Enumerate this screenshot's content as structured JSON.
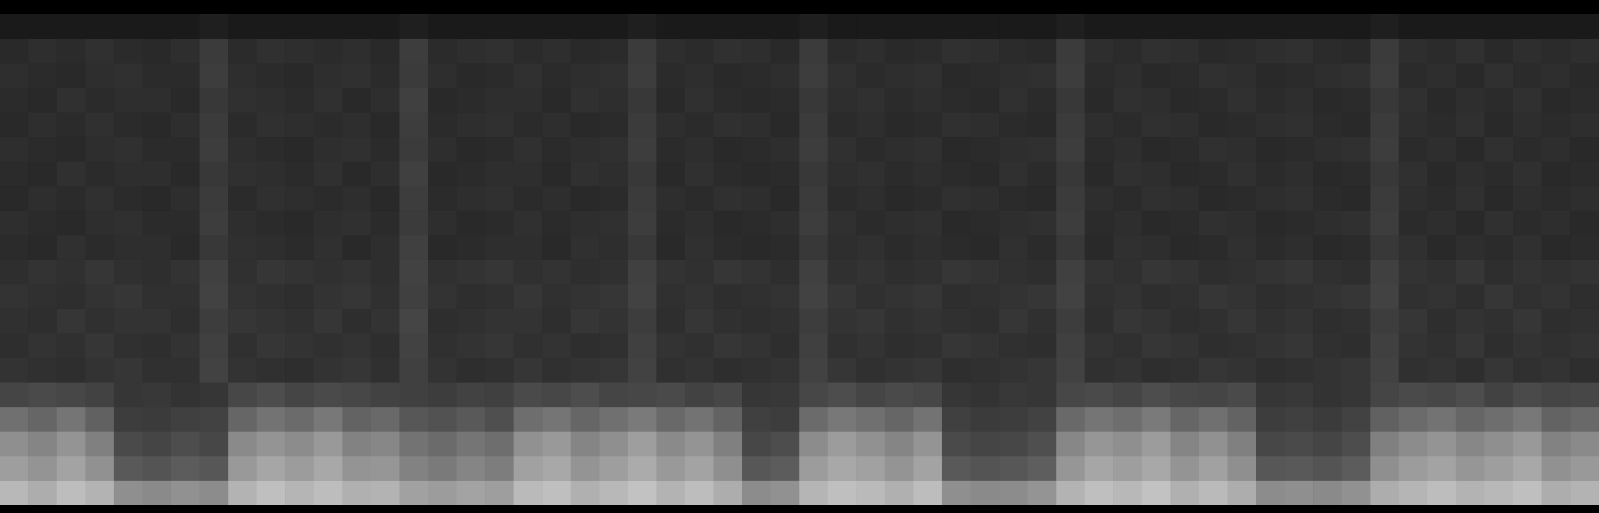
{
  "chart_data": {
    "type": "heatmap",
    "color": "#ffffff",
    "tick_labels": false,
    "grid": false,
    "value_range": [
      0,
      100
    ],
    "cells": [
      [
        10,
        10,
        10,
        10,
        10,
        10,
        10,
        12,
        10,
        10,
        10,
        10,
        10,
        10,
        12,
        10,
        10,
        10,
        10,
        10,
        10,
        10,
        12,
        10,
        10,
        10,
        10,
        10,
        12,
        10,
        10,
        10,
        10,
        10,
        10,
        10,
        10,
        12,
        10,
        10,
        10,
        10,
        10,
        10,
        10,
        10,
        10,
        10,
        12,
        10,
        10,
        10,
        10,
        10,
        10,
        10
      ],
      [
        16,
        18,
        17,
        19,
        17,
        16,
        18,
        23,
        17,
        19,
        18,
        17,
        18,
        16,
        24,
        17,
        18,
        19,
        17,
        18,
        16,
        17,
        23,
        18,
        17,
        19,
        18,
        16,
        23,
        17,
        18,
        16,
        17,
        19,
        18,
        17,
        16,
        23,
        18,
        17,
        19,
        18,
        16,
        17,
        18,
        19,
        17,
        16,
        23,
        18,
        17,
        19,
        16,
        18,
        17,
        18
      ],
      [
        18,
        17,
        16,
        18,
        19,
        17,
        17,
        24,
        18,
        17,
        16,
        18,
        19,
        17,
        23,
        18,
        16,
        17,
        19,
        17,
        18,
        19,
        24,
        17,
        18,
        16,
        17,
        18,
        24,
        19,
        17,
        18,
        19,
        16,
        17,
        18,
        19,
        24,
        17,
        18,
        16,
        17,
        19,
        18,
        16,
        17,
        18,
        19,
        24,
        17,
        18,
        16,
        19,
        17,
        18,
        16
      ],
      [
        17,
        16,
        19,
        17,
        18,
        18,
        16,
        22,
        19,
        18,
        17,
        19,
        16,
        18,
        25,
        16,
        17,
        18,
        18,
        16,
        19,
        18,
        22,
        16,
        19,
        17,
        16,
        17,
        22,
        18,
        19,
        17,
        18,
        17,
        16,
        19,
        17,
        22,
        16,
        19,
        18,
        16,
        17,
        19,
        17,
        18,
        16,
        17,
        22,
        19,
        16,
        18,
        17,
        19,
        16,
        17
      ],
      [
        16,
        18,
        17,
        19,
        17,
        16,
        18,
        23,
        17,
        19,
        18,
        17,
        18,
        16,
        24,
        17,
        18,
        19,
        17,
        18,
        16,
        17,
        23,
        18,
        17,
        19,
        18,
        16,
        23,
        17,
        18,
        16,
        17,
        19,
        18,
        17,
        16,
        23,
        18,
        17,
        19,
        18,
        16,
        17,
        18,
        19,
        17,
        16,
        23,
        18,
        17,
        19,
        16,
        18,
        17,
        18
      ],
      [
        18,
        17,
        16,
        18,
        19,
        17,
        17,
        24,
        18,
        17,
        16,
        18,
        19,
        17,
        23,
        18,
        16,
        17,
        19,
        17,
        18,
        19,
        24,
        17,
        18,
        16,
        17,
        18,
        24,
        19,
        17,
        18,
        19,
        16,
        17,
        18,
        19,
        24,
        17,
        18,
        16,
        17,
        19,
        18,
        16,
        17,
        18,
        19,
        24,
        17,
        18,
        16,
        19,
        17,
        18,
        16
      ],
      [
        17,
        16,
        19,
        17,
        18,
        18,
        16,
        22,
        19,
        18,
        17,
        19,
        16,
        18,
        25,
        16,
        17,
        18,
        18,
        16,
        19,
        18,
        22,
        16,
        19,
        17,
        16,
        17,
        22,
        18,
        19,
        17,
        18,
        17,
        16,
        19,
        17,
        22,
        16,
        19,
        18,
        16,
        17,
        19,
        17,
        18,
        16,
        17,
        22,
        19,
        16,
        18,
        17,
        19,
        16,
        17
      ],
      [
        16,
        18,
        17,
        19,
        17,
        16,
        18,
        23,
        17,
        19,
        18,
        17,
        18,
        16,
        24,
        17,
        18,
        19,
        17,
        18,
        16,
        17,
        23,
        18,
        17,
        19,
        18,
        16,
        23,
        17,
        18,
        16,
        17,
        19,
        18,
        17,
        16,
        23,
        18,
        17,
        19,
        18,
        16,
        17,
        18,
        19,
        17,
        16,
        23,
        18,
        17,
        19,
        16,
        18,
        17,
        18
      ],
      [
        18,
        17,
        16,
        18,
        19,
        17,
        17,
        24,
        18,
        17,
        16,
        18,
        19,
        17,
        23,
        18,
        16,
        17,
        19,
        17,
        18,
        19,
        24,
        17,
        18,
        16,
        17,
        18,
        24,
        19,
        17,
        18,
        19,
        16,
        17,
        18,
        19,
        24,
        17,
        18,
        16,
        17,
        19,
        18,
        16,
        17,
        18,
        19,
        24,
        17,
        18,
        16,
        19,
        17,
        18,
        16
      ],
      [
        17,
        16,
        19,
        17,
        18,
        18,
        16,
        22,
        19,
        18,
        17,
        19,
        16,
        18,
        25,
        16,
        17,
        18,
        18,
        16,
        19,
        18,
        22,
        16,
        19,
        17,
        16,
        17,
        22,
        18,
        19,
        17,
        18,
        17,
        16,
        19,
        17,
        22,
        16,
        19,
        18,
        16,
        17,
        19,
        17,
        18,
        16,
        17,
        22,
        19,
        16,
        18,
        17,
        19,
        16,
        17
      ],
      [
        18,
        20,
        19,
        21,
        19,
        18,
        20,
        25,
        19,
        21,
        20,
        19,
        20,
        18,
        26,
        19,
        20,
        21,
        19,
        20,
        18,
        19,
        25,
        20,
        19,
        21,
        20,
        18,
        25,
        19,
        20,
        18,
        19,
        21,
        20,
        19,
        18,
        25,
        20,
        19,
        21,
        20,
        18,
        19,
        20,
        21,
        19,
        18,
        25,
        20,
        19,
        21,
        18,
        20,
        19,
        20
      ],
      [
        20,
        19,
        18,
        20,
        21,
        19,
        19,
        26,
        20,
        19,
        18,
        20,
        21,
        19,
        25,
        20,
        18,
        19,
        21,
        19,
        20,
        21,
        26,
        19,
        20,
        18,
        19,
        20,
        26,
        21,
        19,
        20,
        21,
        18,
        19,
        20,
        21,
        26,
        19,
        20,
        18,
        19,
        21,
        20,
        18,
        19,
        20,
        21,
        26,
        19,
        20,
        18,
        21,
        19,
        20,
        18
      ],
      [
        19,
        18,
        21,
        19,
        20,
        20,
        18,
        24,
        21,
        20,
        19,
        21,
        18,
        20,
        27,
        18,
        19,
        20,
        20,
        18,
        21,
        20,
        24,
        18,
        21,
        19,
        18,
        19,
        24,
        20,
        21,
        19,
        20,
        19,
        18,
        21,
        19,
        24,
        18,
        21,
        20,
        18,
        19,
        21,
        19,
        20,
        18,
        19,
        24,
        21,
        18,
        20,
        19,
        21,
        18,
        19
      ],
      [
        18,
        20,
        19,
        21,
        19,
        18,
        20,
        25,
        19,
        21,
        20,
        19,
        20,
        18,
        26,
        19,
        20,
        21,
        19,
        20,
        18,
        19,
        25,
        20,
        19,
        21,
        20,
        18,
        25,
        19,
        20,
        18,
        19,
        21,
        20,
        19,
        18,
        25,
        20,
        19,
        21,
        20,
        18,
        19,
        20,
        21,
        19,
        18,
        25,
        20,
        19,
        21,
        18,
        20,
        19,
        20
      ],
      [
        20,
        19,
        18,
        20,
        21,
        19,
        19,
        26,
        20,
        19,
        18,
        20,
        21,
        19,
        25,
        20,
        18,
        19,
        21,
        19,
        20,
        21,
        26,
        19,
        20,
        18,
        19,
        20,
        26,
        21,
        19,
        20,
        21,
        18,
        19,
        20,
        21,
        26,
        19,
        20,
        18,
        19,
        21,
        20,
        18,
        19,
        20,
        21,
        26,
        19,
        20,
        18,
        21,
        19,
        20,
        18
      ],
      [
        27,
        29,
        28,
        26,
        21,
        22,
        20,
        21,
        28,
        30,
        27,
        29,
        28,
        26,
        25,
        24,
        26,
        25,
        29,
        28,
        30,
        27,
        28,
        29,
        26,
        28,
        21,
        22,
        28,
        30,
        27,
        29,
        28,
        21,
        20,
        22,
        21,
        28,
        29,
        27,
        30,
        28,
        27,
        29,
        21,
        22,
        20,
        21,
        27,
        29,
        28,
        30,
        26,
        29,
        27,
        28
      ],
      [
        44,
        40,
        46,
        38,
        24,
        23,
        25,
        26,
        40,
        45,
        42,
        47,
        39,
        41,
        34,
        32,
        35,
        31,
        43,
        46,
        40,
        44,
        48,
        41,
        45,
        39,
        25,
        24,
        42,
        47,
        44,
        40,
        45,
        25,
        23,
        24,
        26,
        41,
        46,
        43,
        48,
        40,
        44,
        39,
        24,
        25,
        23,
        26,
        38,
        42,
        45,
        40,
        43,
        47,
        39,
        41
      ],
      [
        56,
        52,
        58,
        50,
        29,
        27,
        30,
        28,
        54,
        58,
        55,
        60,
        51,
        53,
        45,
        42,
        46,
        43,
        57,
        60,
        52,
        56,
        62,
        54,
        58,
        50,
        28,
        30,
        55,
        61,
        57,
        52,
        58,
        29,
        27,
        28,
        31,
        53,
        59,
        56,
        61,
        52,
        57,
        50,
        28,
        29,
        27,
        30,
        50,
        55,
        58,
        53,
        56,
        60,
        51,
        54
      ],
      [
        62,
        58,
        64,
        57,
        35,
        33,
        36,
        34,
        60,
        65,
        61,
        66,
        58,
        59,
        51,
        48,
        52,
        49,
        63,
        66,
        58,
        62,
        67,
        60,
        64,
        56,
        34,
        36,
        61,
        66,
        63,
        58,
        64,
        35,
        33,
        34,
        37,
        59,
        65,
        62,
        66,
        58,
        63,
        56,
        34,
        35,
        33,
        36,
        56,
        61,
        64,
        59,
        62,
        66,
        57,
        60
      ],
      [
        72,
        68,
        74,
        70,
        56,
        54,
        57,
        55,
        70,
        75,
        71,
        74,
        69,
        70,
        63,
        61,
        64,
        62,
        73,
        75,
        69,
        72,
        76,
        70,
        74,
        68,
        55,
        57,
        71,
        75,
        73,
        69,
        74,
        56,
        54,
        55,
        58,
        70,
        75,
        72,
        76,
        69,
        73,
        68,
        55,
        56,
        54,
        57,
        68,
        71,
        74,
        70,
        72,
        75,
        68,
        70
      ]
    ]
  }
}
